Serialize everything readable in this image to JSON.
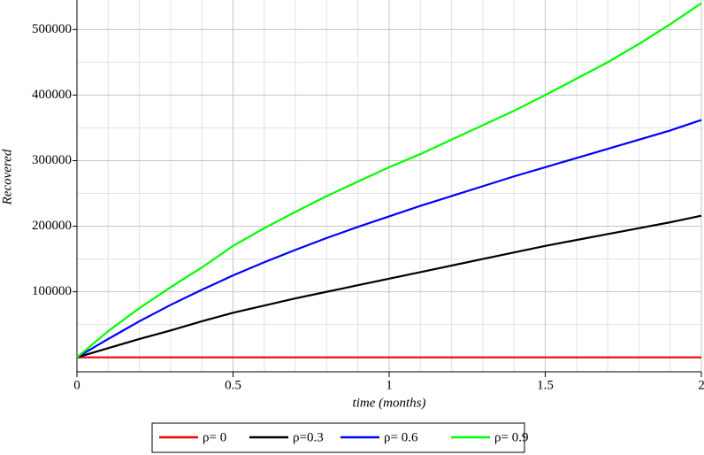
{
  "chart_data": {
    "type": "line",
    "x_label": "time (months)",
    "y_label": "Recovered",
    "x": [
      0,
      0.1,
      0.2,
      0.3,
      0.4,
      0.5,
      0.6,
      0.7,
      0.8,
      0.9,
      1.0,
      1.1,
      1.2,
      1.3,
      1.4,
      1.5,
      1.6,
      1.7,
      1.8,
      1.9,
      2.0
    ],
    "series": [
      {
        "name": "ρ= 0",
        "color": "#ff0000",
        "values": [
          0,
          0,
          0,
          0,
          0,
          0,
          0,
          0,
          0,
          0,
          0,
          0,
          0,
          0,
          0,
          0,
          0,
          0,
          0,
          0,
          0
        ]
      },
      {
        "name": "ρ=0.3",
        "color": "#000000",
        "values": [
          0,
          14000,
          28000,
          41000,
          55000,
          68000,
          79000,
          90000,
          100000,
          110000,
          120000,
          130000,
          140000,
          150000,
          160000,
          170000,
          179000,
          188000,
          197000,
          206000,
          216000
        ]
      },
      {
        "name": "ρ= 0.6",
        "color": "#0000ff",
        "values": [
          0,
          28000,
          55000,
          80000,
          103000,
          125000,
          145000,
          164000,
          182000,
          199000,
          215000,
          231000,
          246000,
          261000,
          276000,
          290000,
          304000,
          318000,
          332000,
          346000,
          362000
        ]
      },
      {
        "name": "ρ= 0.9",
        "color": "#00ff00",
        "values": [
          0,
          40000,
          75000,
          107000,
          137000,
          170000,
          197000,
          222000,
          246000,
          268000,
          290000,
          310000,
          332000,
          354000,
          376000,
          400000,
          425000,
          450000,
          478000,
          508000,
          540000
        ]
      }
    ],
    "xlim": [
      0,
      2
    ],
    "ylim": [
      -22000,
      545000
    ],
    "xticks": [
      {
        "value": 0,
        "label": "0"
      },
      0.5,
      1,
      1.5,
      2
    ],
    "yticks": [
      100000,
      200000,
      300000,
      400000,
      500000
    ],
    "xminorticks": [
      0.1,
      0.2,
      0.3,
      0.4,
      0.6,
      0.7,
      0.8,
      0.9,
      1.1,
      1.2,
      1.3,
      1.4,
      1.6,
      1.7,
      1.8,
      1.9
    ],
    "yminorticks": [
      0,
      50000,
      150000,
      250000,
      350000,
      450000
    ],
    "grid": true,
    "legend": "bottom"
  }
}
